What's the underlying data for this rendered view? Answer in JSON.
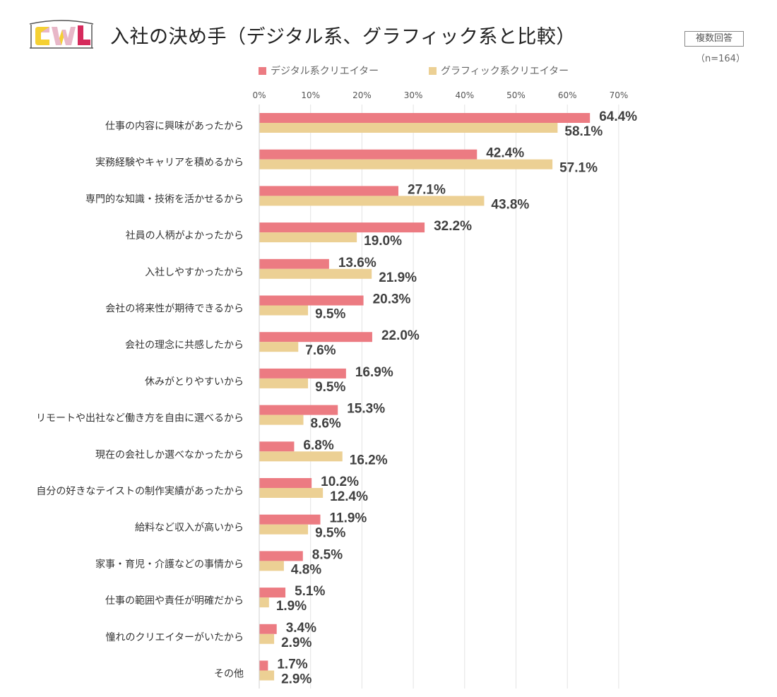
{
  "logo": {
    "text": "CWL",
    "colors": [
      "#e8b7c8",
      "#f5d033",
      "#d62a5c",
      "#d62a5c"
    ]
  },
  "title": "入社の決め手（デジタル系、グラフィック系と比較）",
  "note": "複数回答",
  "sample_size": "（n=164）",
  "colors": {
    "digital": "#ec7b82",
    "graphic": "#ecd094",
    "grid": "#e3e3e3"
  },
  "chart_data": {
    "type": "bar",
    "orientation": "horizontal",
    "title": "入社の決め手（デジタル系、グラフィック系と比較）",
    "xlabel": "",
    "ylabel": "",
    "xlim": [
      0,
      70
    ],
    "x_ticks": [
      "0%",
      "10%",
      "20%",
      "30%",
      "40%",
      "50%",
      "60%",
      "70%"
    ],
    "x_tick_values": [
      0,
      10,
      20,
      30,
      40,
      50,
      60,
      70
    ],
    "legend_position": "top",
    "categories": [
      "仕事の内容に興味があったから",
      "実務経験やキャリアを積めるから",
      "専門的な知識・技術を活かせるから",
      "社員の人柄がよかったから",
      "入社しやすかったから",
      "会社の将来性が期待できるから",
      "会社の理念に共感したから",
      "休みがとりやすいから",
      "リモートや出社など働き方を自由に選べるから",
      "現在の会社しか選べなかったから",
      "自分の好きなテイストの制作実績があったから",
      "給料など収入が高いから",
      "家事・育児・介護などの事情から",
      "仕事の範囲や責任が明確だから",
      "憧れのクリエイターがいたから",
      "その他"
    ],
    "series": [
      {
        "name": "デジタル系クリエイター",
        "values": [
          64.4,
          42.4,
          27.1,
          32.2,
          13.6,
          20.3,
          22.0,
          16.9,
          15.3,
          6.8,
          10.2,
          11.9,
          8.5,
          5.1,
          3.4,
          1.7
        ],
        "labels": [
          "64.4%",
          "42.4%",
          "27.1%",
          "32.2%",
          "13.6%",
          "20.3%",
          "22.0%",
          "16.9%",
          "15.3%",
          "6.8%",
          "10.2%",
          "11.9%",
          "8.5%",
          "5.1%",
          "3.4%",
          "1.7%"
        ]
      },
      {
        "name": "グラフィック系クリエイター",
        "values": [
          58.1,
          57.1,
          43.8,
          19.0,
          21.9,
          9.5,
          7.6,
          9.5,
          8.6,
          16.2,
          12.4,
          9.5,
          4.8,
          1.9,
          2.9,
          2.9
        ],
        "labels": [
          "58.1%",
          "57.1%",
          "43.8%",
          "19.0%",
          "21.9%",
          "9.5%",
          "7.6%",
          "9.5%",
          "8.6%",
          "16.2%",
          "12.4%",
          "9.5%",
          "4.8%",
          "1.9%",
          "2.9%",
          "2.9%"
        ]
      }
    ]
  }
}
